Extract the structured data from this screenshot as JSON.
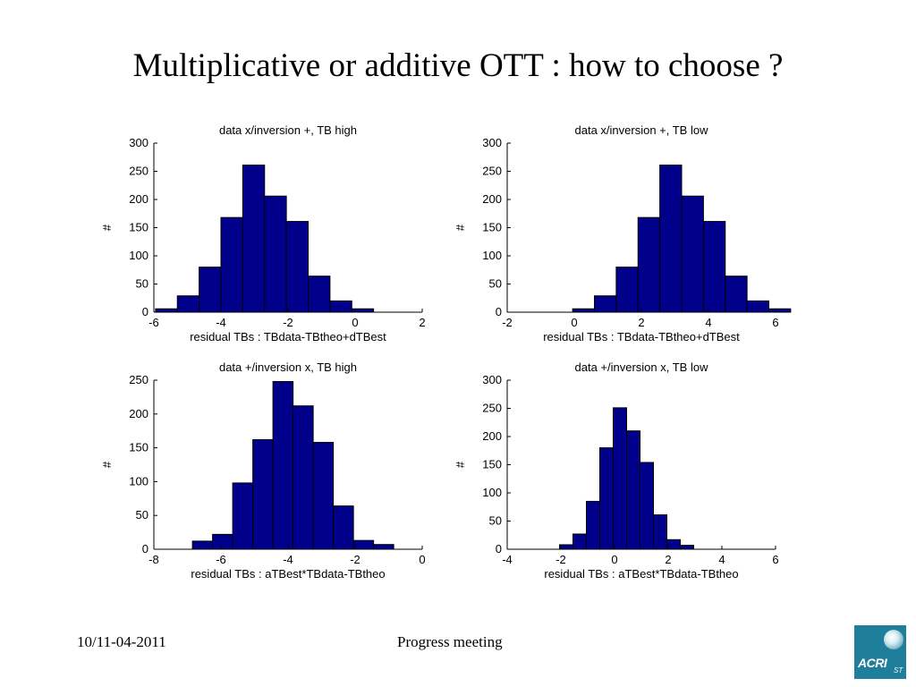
{
  "slide": {
    "title": "Multiplicative or additive OTT : how to choose ?",
    "footer_date": "10/11-04-2011",
    "footer_center": "Progress meeting",
    "logo_text": "ACRI",
    "logo_sub": "ST"
  },
  "colors": {
    "bar_fill": "#00008B",
    "bar_stroke": "#000000"
  },
  "chart_data": [
    {
      "type": "bar",
      "title": "data x/inversion +, TB high",
      "xlabel": "residual TBs : TBdata-TBtheo+dTBest",
      "ylabel": "#",
      "xlim": [
        -6,
        2
      ],
      "ylim": [
        0,
        300
      ],
      "xticks": [
        -6,
        -4,
        -2,
        0,
        2
      ],
      "yticks": [
        0,
        50,
        100,
        150,
        200,
        250,
        300
      ],
      "bin_edges": [
        -5.95,
        -5.3,
        -4.65,
        -4.0,
        -3.35,
        -2.7,
        -2.05,
        -1.4,
        -0.75,
        -0.1,
        0.55
      ],
      "values": [
        6,
        29,
        80,
        168,
        261,
        206,
        161,
        64,
        20,
        6
      ]
    },
    {
      "type": "bar",
      "title": "data x/inversion +, TB low",
      "xlabel": "residual TBs : TBdata-TBtheo+dTBest",
      "ylabel": "#",
      "xlim": [
        -2,
        6
      ],
      "ylim": [
        0,
        300
      ],
      "xticks": [
        -2,
        0,
        2,
        4,
        6
      ],
      "yticks": [
        0,
        50,
        100,
        150,
        200,
        250,
        300
      ],
      "bin_edges": [
        -0.05,
        0.6,
        1.25,
        1.9,
        2.55,
        3.2,
        3.85,
        4.5,
        5.15,
        5.8,
        6.45
      ],
      "values": [
        6,
        29,
        80,
        168,
        261,
        206,
        161,
        64,
        20,
        6
      ]
    },
    {
      "type": "bar",
      "title": "data +/inversion x, TB high",
      "xlabel": "residual TBs : aTBest*TBdata-TBtheo",
      "ylabel": "#",
      "xlim": [
        -8,
        0
      ],
      "ylim": [
        0,
        250
      ],
      "xticks": [
        -8,
        -6,
        -4,
        -2,
        0
      ],
      "yticks": [
        0,
        50,
        100,
        150,
        200,
        250
      ],
      "bin_edges": [
        -6.85,
        -6.25,
        -5.65,
        -5.05,
        -4.45,
        -3.85,
        -3.25,
        -2.65,
        -2.05,
        -1.45,
        -0.85
      ],
      "values": [
        12,
        22,
        98,
        162,
        248,
        212,
        158,
        64,
        13,
        7
      ]
    },
    {
      "type": "bar",
      "title": "data +/inversion x, TB low",
      "xlabel": "residual TBs : aTBest*TBdata-TBtheo",
      "ylabel": "#",
      "xlim": [
        -4,
        6
      ],
      "ylim": [
        0,
        300
      ],
      "xticks": [
        -4,
        -2,
        0,
        2,
        4,
        6
      ],
      "yticks": [
        0,
        50,
        100,
        150,
        200,
        250,
        300
      ],
      "bin_edges": [
        -2.05,
        -1.55,
        -1.05,
        -0.55,
        -0.05,
        0.45,
        0.95,
        1.45,
        1.95,
        2.45,
        2.95,
        3.45,
        3.95
      ],
      "values": [
        8,
        27,
        85,
        180,
        251,
        210,
        154,
        61,
        17,
        7,
        0,
        0
      ]
    }
  ]
}
